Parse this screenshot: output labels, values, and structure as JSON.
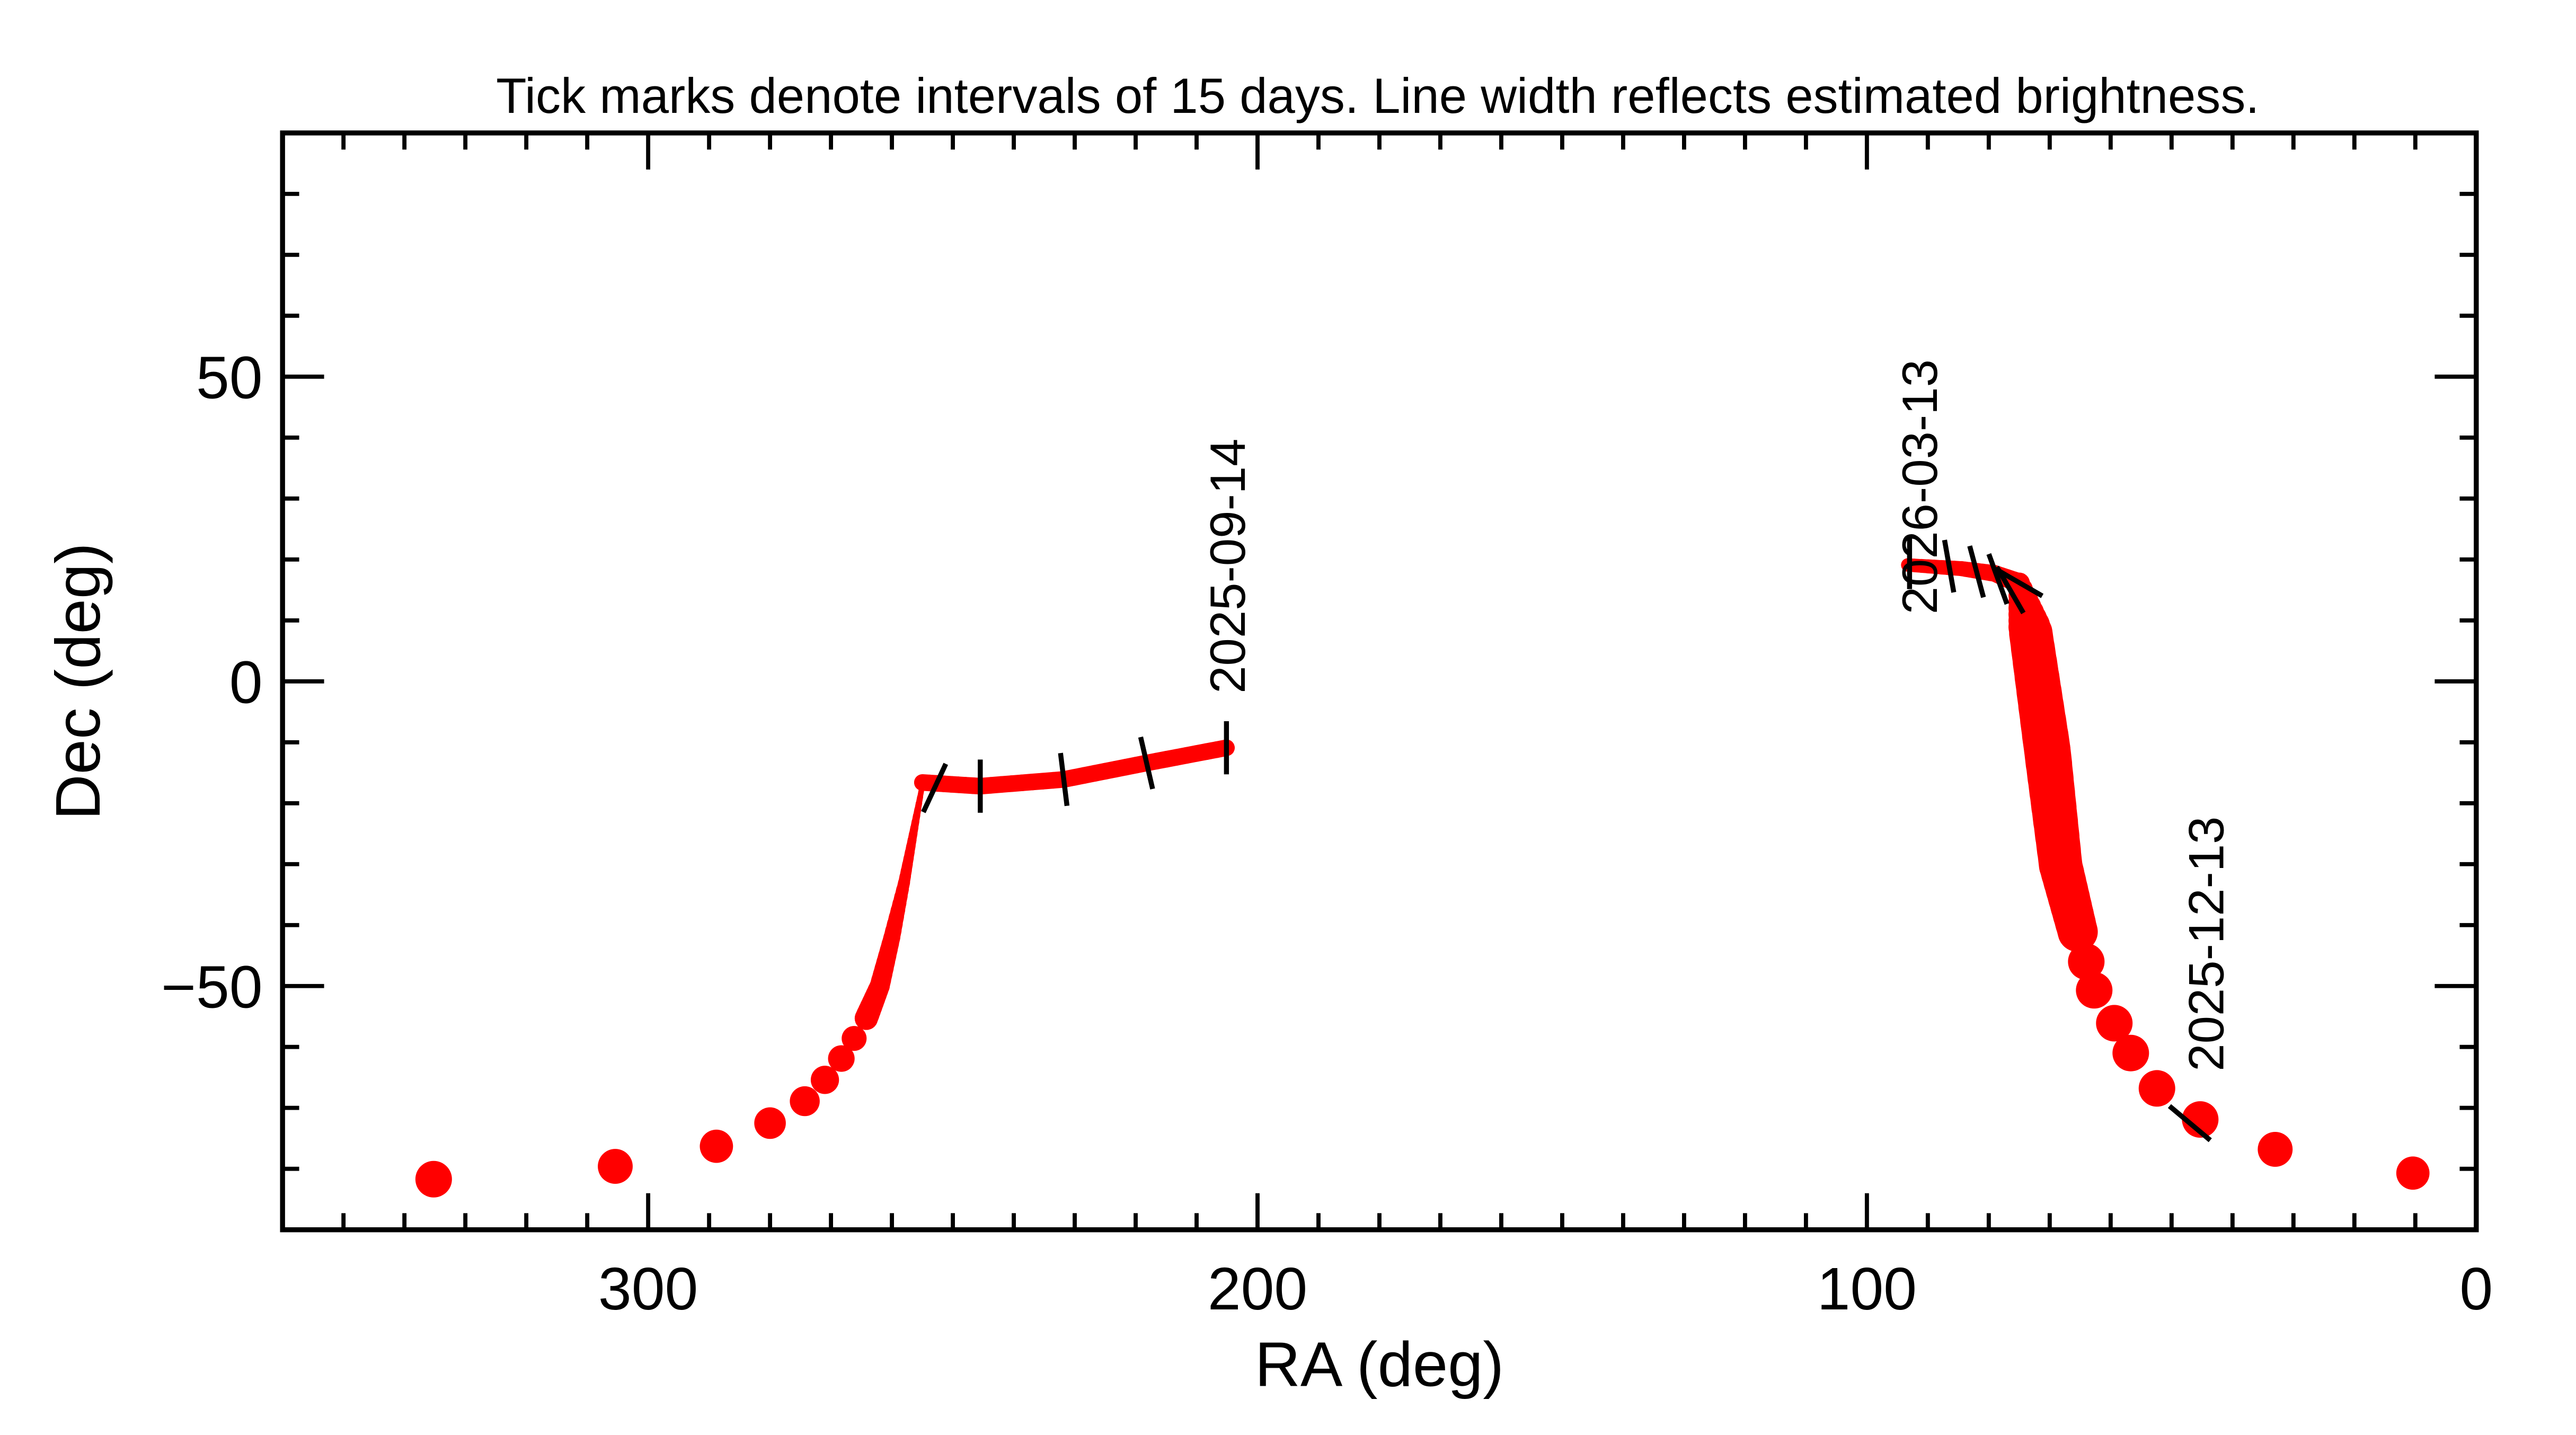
{
  "chart_data": {
    "type": "line",
    "title": "Tick marks denote intervals of 15 days.  Line width reflects estimated brightness.",
    "xlabel": "RA (deg)",
    "ylabel": "Dec (deg)",
    "xlim": [
      360,
      0
    ],
    "ylim": [
      -90,
      90
    ],
    "x_ticks": [
      300,
      200,
      100,
      0
    ],
    "x_tick_labels": [
      "300",
      "200",
      "100",
      "0"
    ],
    "y_ticks": [
      50,
      0,
      -50
    ],
    "y_tick_labels": [
      "50",
      "0",
      "−50"
    ],
    "grid": false,
    "line_color": "#ff0000",
    "segments": [
      {
        "style": "dots",
        "points": [
          [
            335.2,
            -81.7,
            22
          ],
          [
            305.4,
            -79.6,
            21
          ],
          [
            288.8,
            -76.3,
            20
          ],
          [
            280,
            -72.5,
            19
          ],
          [
            274.3,
            -68.9,
            18
          ],
          [
            271,
            -65.4,
            17
          ],
          [
            268.3,
            -61.9,
            16
          ],
          [
            266.2,
            -58.6,
            15
          ],
          [
            264.2,
            -55.3,
            14
          ]
        ]
      },
      {
        "style": "line",
        "points": [
          [
            264.2,
            -55.3,
            14
          ],
          [
            262,
            -50,
            12
          ],
          [
            260,
            -42,
            10
          ],
          [
            258,
            -33,
            7
          ],
          [
            256.5,
            -25,
            5
          ],
          [
            255,
            -17,
            3
          ]
        ]
      },
      {
        "style": "line",
        "points": [
          [
            255,
            -16.6,
            10
          ],
          [
            245.5,
            -17.2,
            10
          ],
          [
            231.8,
            -16.1,
            10
          ],
          [
            218.2,
            -13.4,
            10
          ],
          [
            205.1,
            -10.9,
            10
          ]
        ]
      },
      {
        "style": "line",
        "points": [
          [
            93.3,
            19.1,
            8
          ],
          [
            84.5,
            18.5,
            9
          ],
          [
            79,
            17.7,
            10
          ],
          [
            75,
            16.1,
            12
          ],
          [
            73.1,
            7.9,
            26
          ],
          [
            70.4,
            -11.2,
            28
          ],
          [
            68.2,
            -30.2,
            26
          ],
          [
            65.4,
            -41.1,
            24
          ]
        ]
      },
      {
        "style": "dots",
        "points": [
          [
            65.4,
            -41.1,
            22
          ],
          [
            64,
            -46,
            22
          ],
          [
            62.7,
            -50.7,
            22
          ],
          [
            59.4,
            -56.1,
            22
          ],
          [
            56.7,
            -61,
            22
          ],
          [
            52.4,
            -66.8,
            22
          ],
          [
            45.3,
            -71.9,
            22
          ],
          [
            33,
            -76.8,
            21
          ],
          [
            10.4,
            -80.7,
            20
          ]
        ]
      }
    ],
    "date_ticks": [
      [
        253,
        -17.5,
        65
      ],
      [
        245.5,
        -17.2,
        90
      ],
      [
        231.8,
        -16.1,
        97
      ],
      [
        218.2,
        -13.4,
        103
      ],
      [
        205.1,
        -10.9,
        90
      ],
      [
        93,
        19.5,
        90
      ],
      [
        86.5,
        18.9,
        100
      ],
      [
        82,
        18,
        105
      ],
      [
        78.5,
        16.8,
        110
      ],
      [
        76.5,
        15,
        120
      ],
      [
        75,
        16.2,
        150
      ],
      [
        47,
        -72.5,
        140
      ]
    ],
    "annotations": [
      {
        "text": "2025-09-14",
        "ra": 205.1,
        "dec": -2
      },
      {
        "text": "2026-03-13",
        "ra": 91.5,
        "dec": 11
      },
      {
        "text": "2025-12-13",
        "ra": 44.5,
        "dec": -64
      }
    ]
  }
}
